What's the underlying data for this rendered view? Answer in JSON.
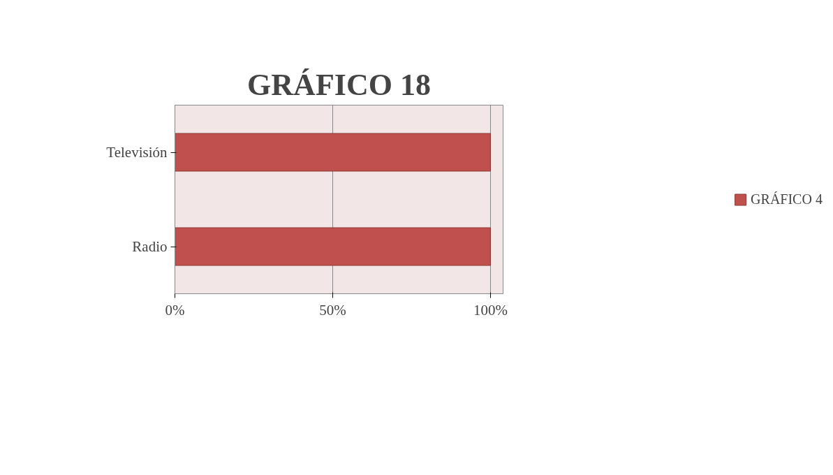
{
  "chart_data": {
    "type": "bar",
    "orientation": "horizontal",
    "title": "GRÁFICO 18",
    "categories": [
      "Televisión",
      "Radio"
    ],
    "series": [
      {
        "name": "GRÁFICO 4",
        "color": "#c0504d",
        "values": [
          100,
          100
        ]
      }
    ],
    "xlim": [
      0,
      104
    ],
    "xticks": [
      {
        "value": 0,
        "label": "0%"
      },
      {
        "value": 50,
        "label": "50%"
      },
      {
        "value": 100,
        "label": "100%"
      }
    ],
    "grid": "x",
    "legend": "right"
  }
}
